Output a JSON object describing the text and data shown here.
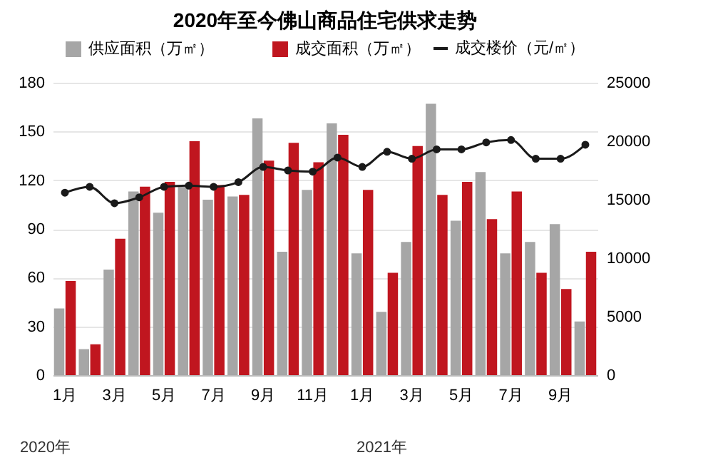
{
  "chart_data": {
    "type": "bar",
    "title": "2020年至今佛山商品住宅供求走势",
    "categories": [
      "1月",
      null,
      "3月",
      null,
      "5月",
      null,
      "7月",
      null,
      "9月",
      null,
      "11月",
      null,
      "1月",
      null,
      "3月",
      null,
      "5月",
      null,
      "7月",
      null,
      "9月",
      null
    ],
    "series": [
      {
        "name": "供应面积（万㎡）",
        "color": "#a6a6a6",
        "values": [
          41,
          16,
          65,
          113,
          100,
          116,
          108,
          110,
          158,
          76,
          114,
          155,
          75,
          39,
          82,
          167,
          95,
          125,
          75,
          82,
          93,
          33
        ]
      },
      {
        "name": "成交面积（万㎡）",
        "color": "#c0161f",
        "values": [
          58,
          19,
          84,
          116,
          119,
          144,
          117,
          111,
          132,
          143,
          131,
          148,
          114,
          63,
          141,
          111,
          119,
          96,
          113,
          63,
          53,
          76
        ]
      },
      {
        "name": "成交楼价（元/㎡）",
        "type": "line",
        "axis": "y2",
        "color": "#1a1a1a",
        "marker": "circle",
        "values": [
          15600,
          16100,
          14700,
          15200,
          16100,
          16200,
          16100,
          16500,
          17800,
          17500,
          17400,
          18600,
          17800,
          19100,
          18500,
          19300,
          19300,
          19900,
          20100,
          18500,
          18500,
          19700
        ]
      }
    ],
    "ylim": [
      0,
      180
    ],
    "yticks": [
      0,
      30,
      60,
      90,
      120,
      150,
      180
    ],
    "y2lim": [
      0,
      25000
    ],
    "y2ticks": [
      0,
      5000,
      10000,
      15000,
      20000,
      25000
    ],
    "grid": "y",
    "legend": "top",
    "annotations": [
      "2020年",
      "2021年"
    ]
  }
}
